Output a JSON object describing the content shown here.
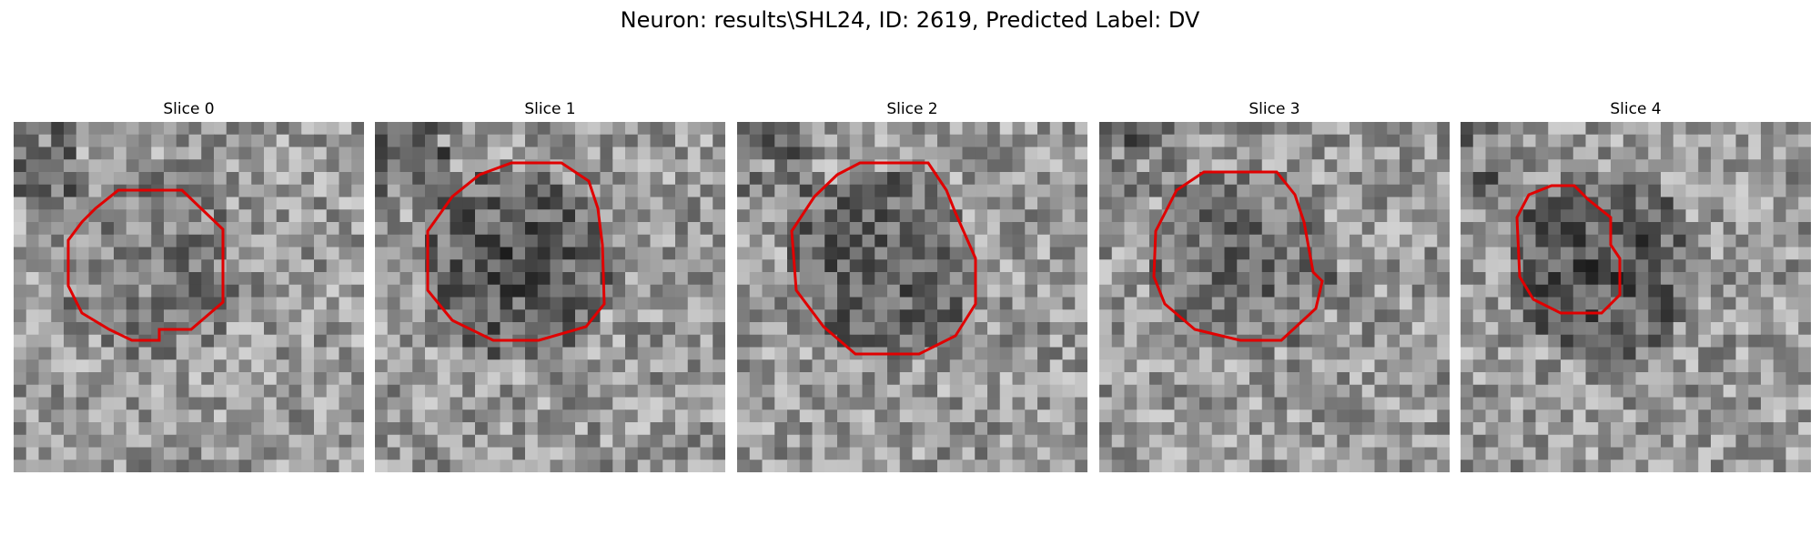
{
  "figure": {
    "title": "Neuron: results\\SHL24, ID: 2619, Predicted Label: DV"
  },
  "panels": [
    {
      "title": "Slice 0"
    },
    {
      "title": "Slice 1"
    },
    {
      "title": "Slice 2"
    },
    {
      "title": "Slice 3"
    },
    {
      "title": "Slice 4"
    }
  ],
  "colors": {
    "contour": "#e00000",
    "background": "#ffffff"
  }
}
